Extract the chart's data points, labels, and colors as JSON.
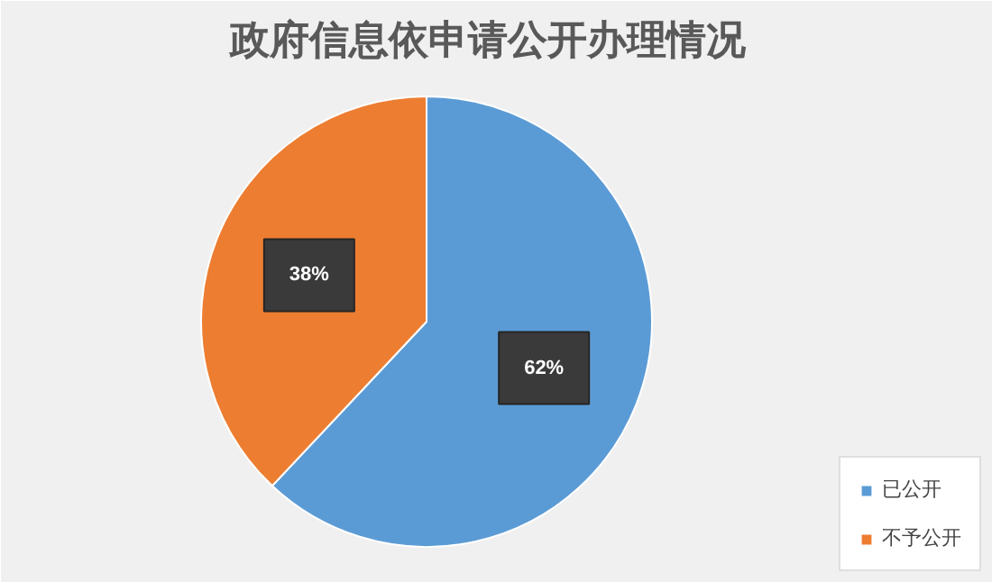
{
  "chart_data": {
    "type": "pie",
    "title": "政府信息依申请公开办理情况",
    "categories": [
      "已公开",
      "不予公开"
    ],
    "values": [
      62,
      38
    ],
    "colors": [
      "#5b9bd5",
      "#ed7d31"
    ],
    "value_labels": [
      "62%",
      "38%"
    ],
    "legend": "bottom right"
  }
}
